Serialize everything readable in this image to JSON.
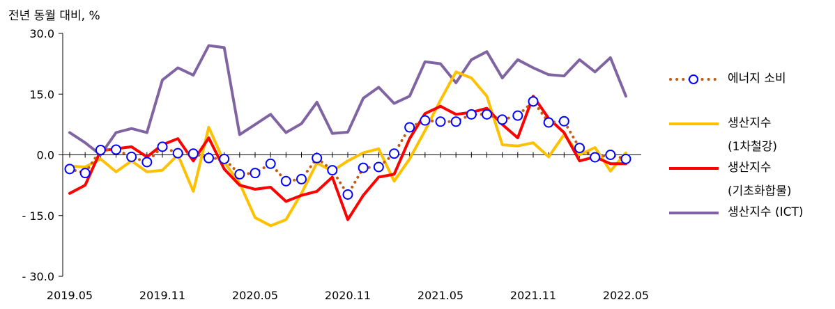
{
  "chart_data": {
    "type": "line",
    "ylabel": "전년 동월 대비, %",
    "ylim": [
      -30,
      30
    ],
    "yticks": [
      30,
      15,
      0,
      -15,
      -30
    ],
    "ytick_labels": [
      "30.0",
      "15.0",
      "0.0",
      "- 15.0",
      "- 30.0"
    ],
    "x": [
      "2019.05",
      "2019.06",
      "2019.07",
      "2019.08",
      "2019.09",
      "2019.10",
      "2019.11",
      "2019.12",
      "2020.01",
      "2020.02",
      "2020.03",
      "2020.04",
      "2020.05",
      "2020.06",
      "2020.07",
      "2020.08",
      "2020.09",
      "2020.10",
      "2020.11",
      "2020.12",
      "2021.01",
      "2021.02",
      "2021.03",
      "2021.04",
      "2021.05",
      "2021.06",
      "2021.07",
      "2021.08",
      "2021.09",
      "2021.10",
      "2021.11",
      "2021.12",
      "2022.01",
      "2022.02",
      "2022.03",
      "2022.04",
      "2022.05"
    ],
    "xtick_labels": [
      "2019.05",
      "2019.11",
      "2020.05",
      "2020.11",
      "2021.05",
      "2021.11",
      "2022.05"
    ],
    "series": [
      {
        "name": "에너지 소비",
        "color": "#C55A11",
        "marker_color": "#0000FF",
        "style": "dotted-with-circles",
        "values": [
          -3.5,
          -4.5,
          1.2,
          1.3,
          -0.5,
          -1.8,
          2.0,
          0.4,
          0.3,
          -0.8,
          -1.0,
          -4.8,
          -4.5,
          -2.2,
          -6.5,
          -6.0,
          -0.8,
          -3.8,
          -9.8,
          -3.2,
          -3.0,
          0.3,
          6.8,
          8.5,
          8.2,
          8.2,
          10.0,
          10.0,
          8.7,
          9.7,
          13.2,
          8.0,
          8.3,
          1.7,
          -0.6,
          0.0,
          -1.0
        ]
      },
      {
        "name": "생산지수 (1차철강)",
        "color": "#FFC000",
        "style": "solid",
        "values": [
          -2.8,
          -3.0,
          -1.0,
          -4.2,
          -1.5,
          -4.2,
          -3.8,
          0.0,
          -9.0,
          6.8,
          -1.8,
          -7.0,
          -15.5,
          -17.5,
          -16.0,
          -9.5,
          -2.0,
          -4.0,
          -1.5,
          0.5,
          1.5,
          -6.5,
          -1.0,
          6.0,
          13.5,
          20.5,
          19.0,
          14.5,
          2.5,
          2.2,
          3.0,
          -0.5,
          5.0,
          0.0,
          1.8,
          -4.0,
          0.5
        ]
      },
      {
        "name": "생산지수 (기초화합물)",
        "color": "#FF0000",
        "style": "solid",
        "values": [
          -9.5,
          -7.5,
          1.0,
          1.5,
          2.0,
          -0.5,
          2.5,
          4.0,
          -1.5,
          4.2,
          -3.5,
          -7.5,
          -8.5,
          -8.0,
          -11.5,
          -10.0,
          -9.0,
          -5.5,
          -16.0,
          -10.0,
          -5.5,
          -4.8,
          4.0,
          10.2,
          12.0,
          10.0,
          10.5,
          11.5,
          7.5,
          4.2,
          14.5,
          9.0,
          5.5,
          -1.5,
          -0.5,
          -2.2,
          -2.2
        ]
      },
      {
        "name": "생산지수 (ICT)",
        "color": "#8064A2",
        "style": "solid",
        "values": [
          5.5,
          3.0,
          0.0,
          5.5,
          6.5,
          5.5,
          18.5,
          21.5,
          19.7,
          27.0,
          26.5,
          5.0,
          7.5,
          10.0,
          5.5,
          7.7,
          13.0,
          5.3,
          5.6,
          14.0,
          16.7,
          12.7,
          14.5,
          23.0,
          22.5,
          17.8,
          23.5,
          25.5,
          19.0,
          23.5,
          21.5,
          19.8,
          19.5,
          23.5,
          20.5,
          24.0,
          14.5
        ]
      }
    ],
    "legend": {
      "position": "right",
      "items": [
        {
          "label": "에너지 소비",
          "sub": ""
        },
        {
          "label": "생산지수",
          "sub": "(1차철강)"
        },
        {
          "label": "생산지수",
          "sub": "(기초화합물)"
        },
        {
          "label": "생산지수 (ICT)",
          "sub": ""
        }
      ]
    },
    "grid": false
  }
}
